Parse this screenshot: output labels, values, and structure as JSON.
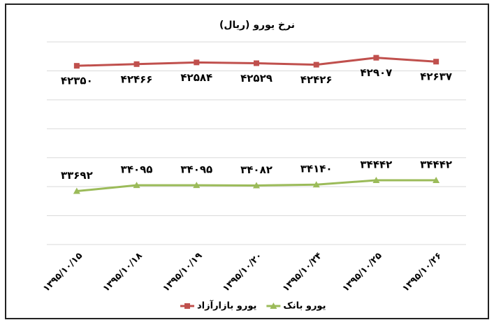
{
  "chart_data": {
    "type": "line",
    "title": "نرخ یورو (ریال)",
    "categories": [
      "۱۳۹۵/۱۰/۱۵",
      "۱۳۹۵/۱۰/۱۸",
      "۱۳۹۵/۱۰/۱۹",
      "۱۳۹۵/۱۰/۲۰",
      "۱۳۹۵/۱۰/۲۴",
      "۱۳۹۵/۱۰/۲۵",
      "۱۳۹۵/۱۰/۲۶"
    ],
    "series": [
      {
        "name": "یورو بازارآزاد",
        "color": "#c0504d",
        "marker": "square",
        "values": [
          42350,
          42466,
          42584,
          42529,
          42426,
          42907,
          42637
        ],
        "value_labels": [
          "۴۲۳۵۰",
          "۴۲۴۶۶",
          "۴۲۵۸۴",
          "۴۲۵۲۹",
          "۴۲۴۲۶",
          "۴۲۹۰۷",
          "۴۲۶۳۷"
        ]
      },
      {
        "name": "یورو بانک",
        "color": "#9bbb59",
        "marker": "triangle",
        "values": [
          33692,
          34095,
          34095,
          34082,
          34140,
          34442,
          34442
        ],
        "value_labels": [
          "۳۳۶۹۲",
          "۳۴۰۹۵",
          "۳۴۰۹۵",
          "۳۴۰۸۲",
          "۳۴۱۴۰",
          "۳۴۴۴۲",
          "۳۴۴۴۲"
        ]
      }
    ],
    "ylim": [
      30000,
      44000
    ],
    "yticks": [
      30000,
      32000,
      34000,
      36000,
      38000,
      40000,
      42000,
      44000
    ],
    "grid": true,
    "legend": "bottom"
  }
}
